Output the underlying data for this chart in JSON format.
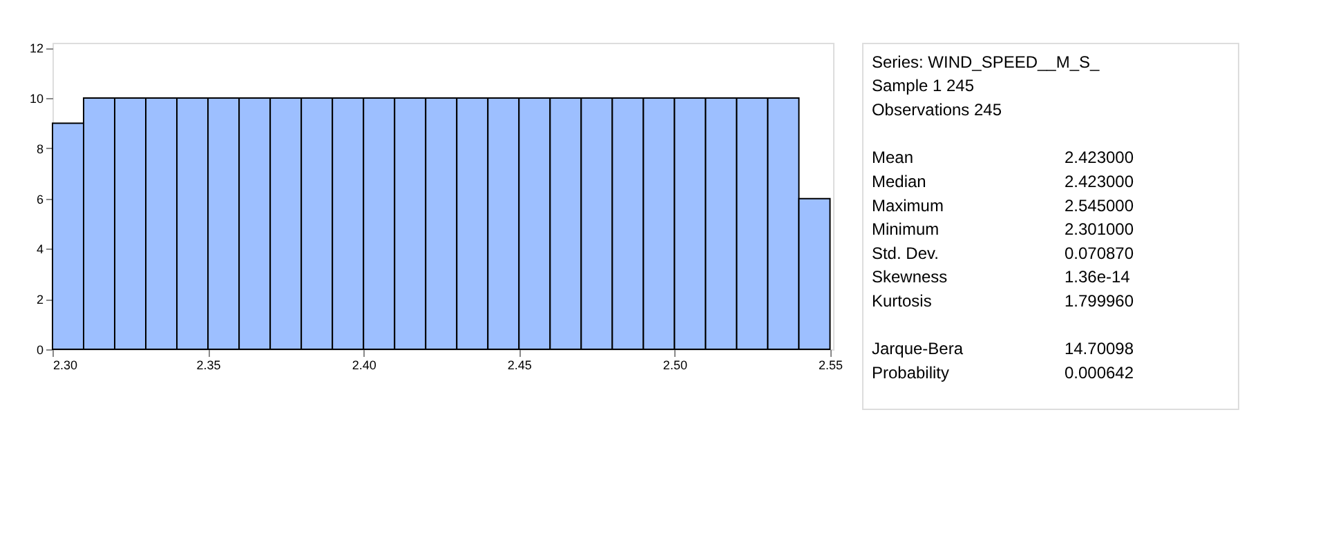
{
  "chart_data": [
    {
      "type": "histogram",
      "bins": [
        2.3,
        2.31,
        2.32,
        2.33,
        2.34,
        2.35,
        2.36,
        2.37,
        2.38,
        2.39,
        2.4,
        2.41,
        2.42,
        2.43,
        2.44,
        2.45,
        2.46,
        2.47,
        2.48,
        2.49,
        2.5,
        2.51,
        2.52,
        2.53,
        2.54,
        2.55
      ],
      "values": [
        9,
        10,
        10,
        10,
        10,
        10,
        10,
        10,
        10,
        10,
        10,
        10,
        10,
        10,
        10,
        10,
        10,
        10,
        10,
        10,
        10,
        10,
        10,
        10,
        6
      ],
      "color": "#9dbfff",
      "xlim": [
        2.3,
        2.551
      ],
      "xticks": [
        {
          "value": 2.3,
          "label": "2.30"
        },
        {
          "value": 2.35,
          "label": "2.35"
        },
        {
          "value": 2.4,
          "label": "2.40"
        },
        {
          "value": 2.45,
          "label": "2.45"
        },
        {
          "value": 2.5,
          "label": "2.50"
        },
        {
          "value": 2.55,
          "label": "2.55"
        }
      ],
      "ylim": [
        0,
        12.2
      ],
      "yticks": [
        0,
        2,
        4,
        6,
        8,
        10,
        12
      ],
      "grid": false
    },
    {
      "type": "other",
      "title": "Series: WIND_SPEED__M_S_",
      "annotations": [
        "Sample 1 245",
        "Observations 245"
      ],
      "categories": [
        "Mean",
        "Median",
        "Maximum",
        "Minimum",
        "Std. Dev.",
        "Skewness",
        "Kurtosis",
        null,
        "Jarque-Bera",
        "Probability"
      ],
      "value_labels": [
        "2.423000",
        "2.423000",
        "2.545000",
        "2.301000",
        "0.070870",
        "1.36e-14",
        "1.799960",
        null,
        "14.70098",
        "0.000642"
      ]
    }
  ]
}
